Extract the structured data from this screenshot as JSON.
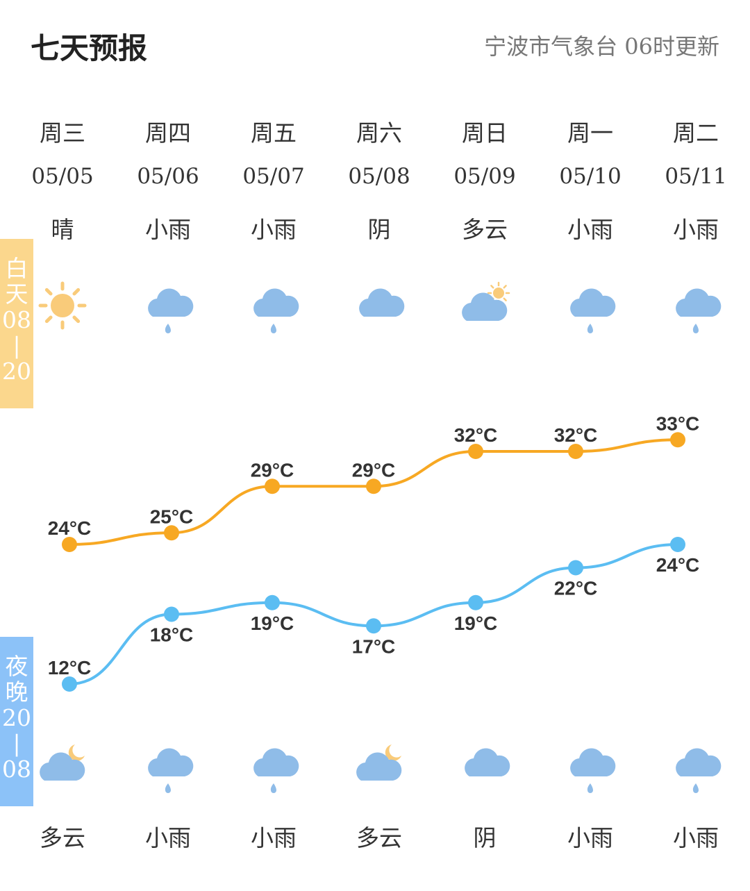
{
  "header": {
    "title": "七天预报",
    "source": "宁波市气象台",
    "update": "06时更新"
  },
  "bands": {
    "day": {
      "label": [
        "白",
        "天",
        "08",
        "|",
        "20"
      ]
    },
    "night": {
      "label": [
        "夜",
        "晚",
        "20",
        "|",
        "08"
      ]
    }
  },
  "days": [
    {
      "week": "周三",
      "date": "05/05",
      "day_cond": "晴",
      "day_icon": "sun",
      "night_cond": "多云",
      "night_icon": "cloudy-night"
    },
    {
      "week": "周四",
      "date": "05/06",
      "day_cond": "小雨",
      "day_icon": "rain",
      "night_cond": "小雨",
      "night_icon": "rain"
    },
    {
      "week": "周五",
      "date": "05/07",
      "day_cond": "小雨",
      "day_icon": "rain",
      "night_cond": "小雨",
      "night_icon": "rain"
    },
    {
      "week": "周六",
      "date": "05/08",
      "day_cond": "阴",
      "day_icon": "cloud",
      "night_cond": "多云",
      "night_icon": "cloudy-night"
    },
    {
      "week": "周日",
      "date": "05/09",
      "day_cond": "多云",
      "day_icon": "cloudy-day",
      "night_cond": "阴",
      "night_icon": "cloud"
    },
    {
      "week": "周一",
      "date": "05/10",
      "day_cond": "小雨",
      "day_icon": "rain",
      "night_cond": "小雨",
      "night_icon": "rain"
    },
    {
      "week": "周二",
      "date": "05/11",
      "day_cond": "小雨",
      "day_icon": "rain",
      "night_cond": "小雨",
      "night_icon": "rain"
    }
  ],
  "chart_data": {
    "type": "line",
    "categories": [
      "05/05",
      "05/06",
      "05/07",
      "05/08",
      "05/09",
      "05/10",
      "05/11"
    ],
    "unit": "°C",
    "series": [
      {
        "key": "high",
        "values": [
          24,
          25,
          29,
          29,
          32,
          32,
          33
        ],
        "labels": [
          "24°C",
          "25°C",
          "29°C",
          "29°C",
          "32°C",
          "32°C",
          "33°C"
        ],
        "color": "#f7a823"
      },
      {
        "key": "low",
        "values": [
          12,
          18,
          19,
          17,
          19,
          22,
          24
        ],
        "labels": [
          "12°C",
          "18°C",
          "19°C",
          "17°C",
          "19°C",
          "22°C",
          "24°C"
        ],
        "color": "#5bbdf2"
      }
    ]
  },
  "colors": {
    "day_band": "#fbd78d",
    "night_band": "#8cc2f8",
    "cloud": "#8fbce8",
    "sun": "#f9cb7a"
  }
}
